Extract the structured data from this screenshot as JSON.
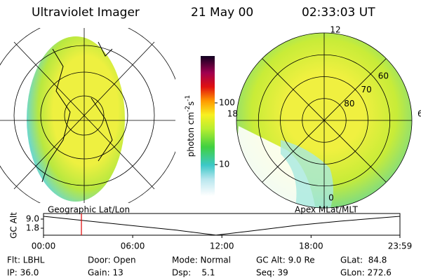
{
  "header": {
    "title": "Ultraviolet Imager",
    "date": "21 May 00",
    "time": "02:33:03 UT"
  },
  "colorbar": {
    "unit": "photon cm",
    "exp1": "-2",
    "unit2": "s",
    "exp2": "-1",
    "log": true,
    "lim": [
      3.1,
      575
    ],
    "ticks": [
      10,
      100
    ]
  },
  "polar": {
    "label": "Apex MLat/MLT",
    "mlt": [
      "12",
      "6",
      "0",
      "18"
    ],
    "lat_labels": [
      80,
      70,
      60
    ]
  },
  "left_map": {
    "label": "Geographic Lat/Lon"
  },
  "timeline": {
    "ylabel": "GC Alt",
    "ylim": [
      -3.7,
      13.4
    ],
    "yticks": [
      {
        "value": 9.0,
        "label": "9.0"
      },
      {
        "value": 1.8,
        "label": "1.8"
      }
    ],
    "xlim": [
      0,
      23.98
    ],
    "xticks": [
      {
        "value": 0,
        "label": "00:00"
      },
      {
        "value": 6,
        "label": "06:00"
      },
      {
        "value": 12,
        "label": "12:00"
      },
      {
        "value": 18,
        "label": "18:00"
      },
      {
        "value": 23.98,
        "label": "23:59"
      }
    ],
    "x": [
      0,
      3,
      6,
      9,
      11.6,
      14,
      17,
      20,
      23.98
    ],
    "values": [
      11.2,
      7.5,
      3.8,
      0.2,
      -3.6,
      -0.3,
      4.0,
      7.4,
      11.2
    ],
    "current": 2.55
  },
  "footer": {
    "rows": [
      [
        "Flt: LBHL",
        "Door: Open",
        "Mode: Normal",
        "GC Alt: 9.0 Re",
        "GLat:  84.8"
      ],
      [
        "IP: 36.0",
        "Gain: 13",
        "Dsp:    5.1",
        "Seq: 39",
        "GLon: 272.6"
      ]
    ]
  }
}
